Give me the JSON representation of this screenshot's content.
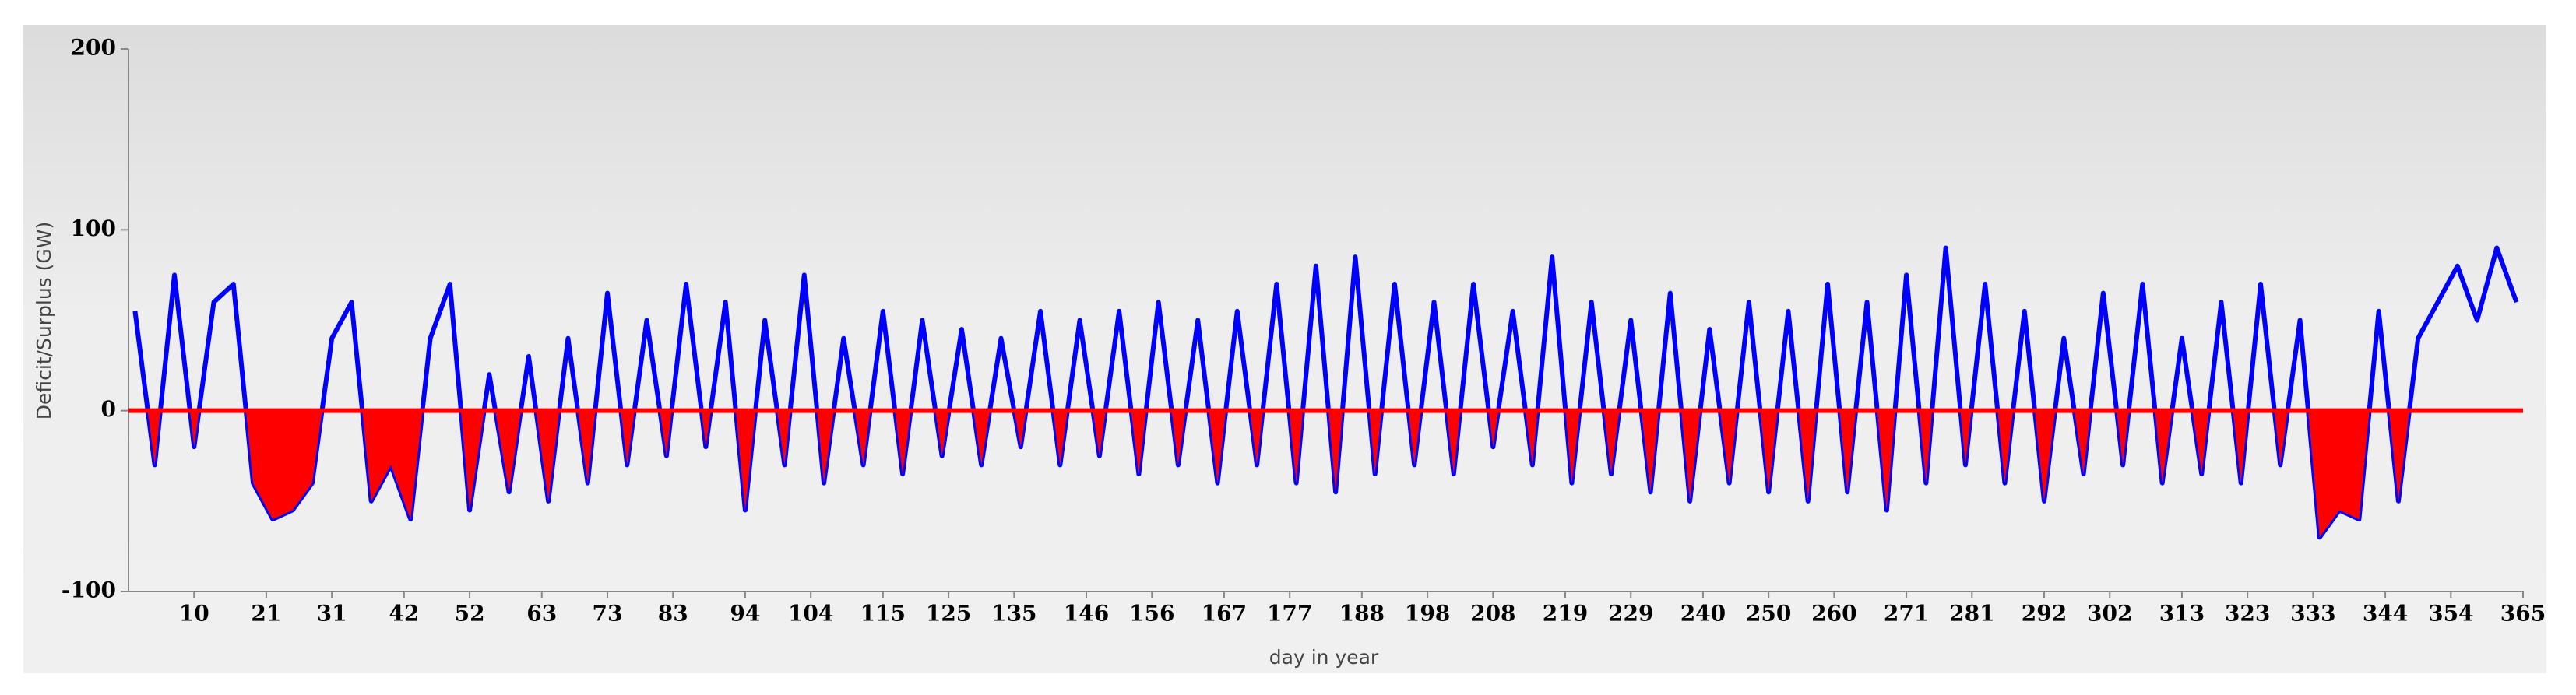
{
  "chart_data": {
    "type": "line",
    "x_label": "day in year",
    "y_label": "Deficit/Surplus (GW)",
    "x": [
      1,
      4,
      7,
      10,
      13,
      16,
      19,
      22,
      25,
      28,
      31,
      34,
      37,
      40,
      43,
      46,
      49,
      52,
      55,
      58,
      61,
      64,
      67,
      70,
      73,
      76,
      79,
      82,
      85,
      88,
      91,
      94,
      97,
      100,
      103,
      106,
      109,
      112,
      115,
      118,
      121,
      124,
      127,
      130,
      133,
      136,
      139,
      142,
      145,
      148,
      151,
      154,
      157,
      160,
      163,
      166,
      169,
      172,
      175,
      178,
      181,
      184,
      187,
      190,
      193,
      196,
      199,
      202,
      205,
      208,
      211,
      214,
      217,
      220,
      223,
      226,
      229,
      232,
      235,
      238,
      241,
      244,
      247,
      250,
      253,
      256,
      259,
      262,
      265,
      268,
      271,
      274,
      277,
      280,
      283,
      286,
      289,
      292,
      295,
      298,
      301,
      304,
      307,
      310,
      313,
      316,
      319,
      322,
      325,
      328,
      331,
      334,
      337,
      340,
      343,
      346,
      349,
      352,
      355,
      358,
      361,
      364
    ],
    "series": [
      {
        "color": "#0000ff",
        "values": [
          55,
          -30,
          75,
          -20,
          60,
          70,
          -40,
          -60,
          -55,
          -40,
          40,
          60,
          -50,
          -30,
          -60,
          40,
          70,
          -55,
          20,
          -45,
          30,
          -50,
          40,
          -40,
          65,
          -30,
          50,
          -25,
          70,
          -20,
          60,
          -55,
          50,
          -30,
          75,
          -40,
          40,
          -30,
          55,
          -35,
          50,
          -25,
          45,
          -30,
          40,
          -20,
          55,
          -30,
          50,
          -25,
          55,
          -35,
          60,
          -30,
          50,
          -40,
          55,
          -30,
          70,
          -40,
          80,
          -45,
          85,
          -35,
          70,
          -30,
          60,
          -35,
          70,
          -20,
          55,
          -30,
          85,
          -40,
          60,
          -35,
          50,
          -45,
          65,
          -50,
          45,
          -40,
          60,
          -45,
          55,
          -50,
          70,
          -45,
          60,
          -55,
          75,
          -40,
          90,
          -30,
          70,
          -40,
          55,
          -50,
          40,
          -35,
          65,
          -30,
          70,
          -40,
          40,
          -35,
          60,
          -40,
          70,
          -30,
          50,
          -70,
          -55,
          -60,
          55,
          -50,
          40,
          60,
          80,
          50,
          90,
          60
        ]
      }
    ],
    "deficit_color": "#ff0000",
    "zero_line_color": "#ff0000",
    "xlim": [
      0,
      365
    ],
    "xticks": [
      10,
      21,
      31,
      42,
      52,
      63,
      73,
      83,
      94,
      104,
      115,
      125,
      135,
      146,
      156,
      167,
      177,
      188,
      198,
      208,
      219,
      229,
      240,
      250,
      260,
      271,
      281,
      292,
      302,
      313,
      323,
      333,
      344,
      354,
      365
    ],
    "ylim": [
      -100,
      200
    ],
    "yticks": [
      -100,
      0,
      100,
      200
    ]
  }
}
